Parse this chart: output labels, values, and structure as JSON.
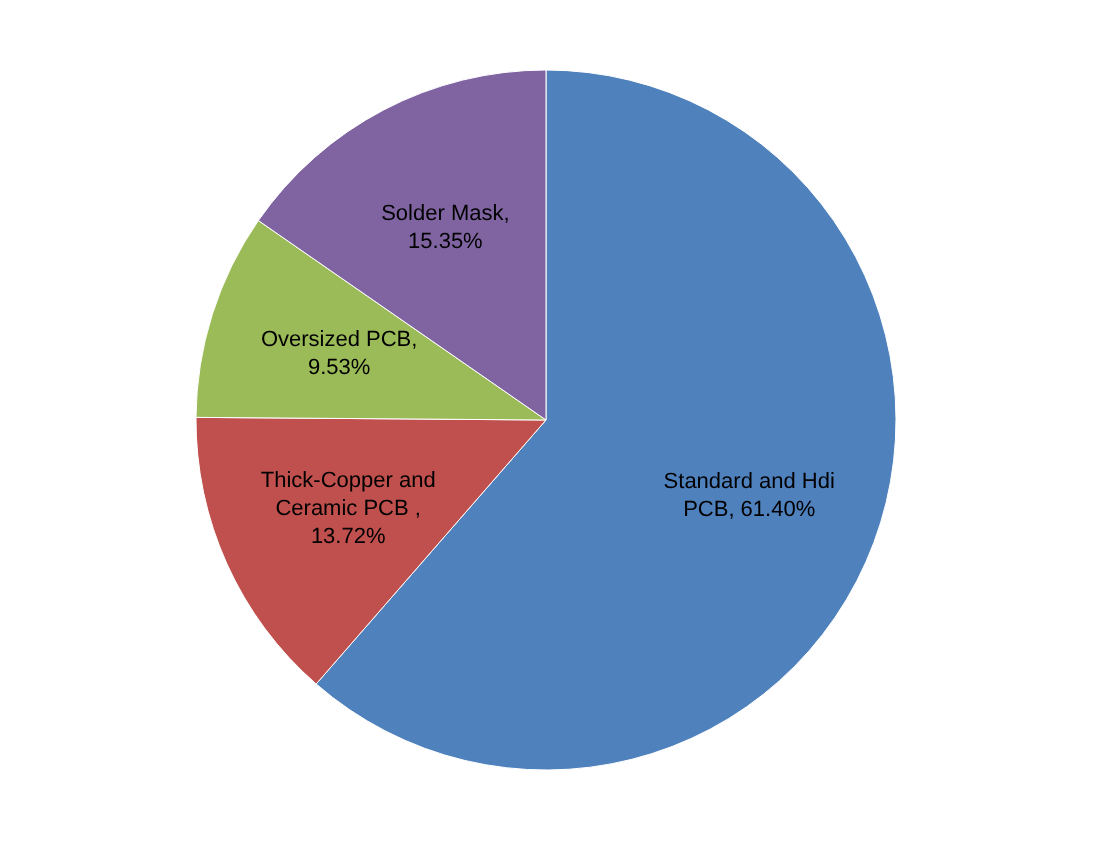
{
  "chart_data": {
    "type": "pie",
    "categories": [
      "Standard and Hdi PCB",
      "Thick-Copper and Ceramic PCB",
      "Oversized PCB",
      "Solder Mask"
    ],
    "values": [
      61.4,
      13.72,
      9.53,
      15.35
    ],
    "value_labels": [
      ", 61.40%",
      " , 13.72%",
      ", 9.53%",
      ", 15.35%"
    ],
    "colors": [
      "#4f81bd",
      "#c0504d",
      "#9bbb59",
      "#8064a2"
    ],
    "legend": false
  }
}
